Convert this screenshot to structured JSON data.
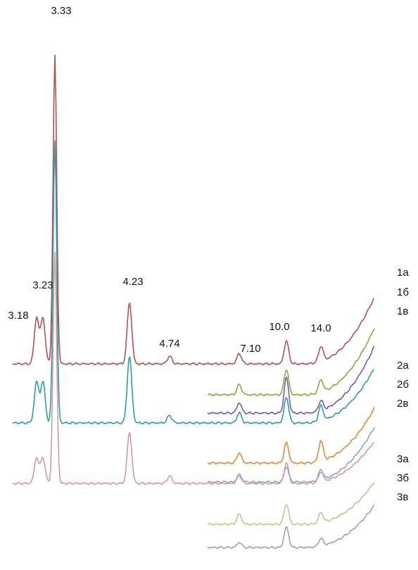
{
  "chart_data": {
    "type": "line",
    "title": "",
    "xlabel": "",
    "ylabel": "",
    "x_unit": "d-spacing",
    "grid": false,
    "legend_position": "right",
    "peak_labels": [
      "3.18",
      "3.23",
      "3.33",
      "4.23",
      "4.74",
      "7.10",
      "10.0",
      "14.0"
    ],
    "series": [
      {
        "name": "1а",
        "color": "#b5524f",
        "range": [
          3.1,
          14.5
        ],
        "peaks": [
          {
            "d": 3.18,
            "h": 9
          },
          {
            "d": 3.23,
            "h": 9
          },
          {
            "d": 3.33,
            "h": 60
          },
          {
            "d": 4.23,
            "h": 12
          },
          {
            "d": 4.74,
            "h": 1.5
          },
          {
            "d": 7.1,
            "h": 2
          },
          {
            "d": 10.0,
            "h": 4.5
          },
          {
            "d": 14.0,
            "h": 3
          }
        ]
      },
      {
        "name": "1б",
        "color": "#8aa93f",
        "range": [
          6.0,
          14.5
        ],
        "peaks": [
          {
            "d": 7.1,
            "h": 2
          },
          {
            "d": 10.0,
            "h": 5
          },
          {
            "d": 14.0,
            "h": 2.5
          }
        ]
      },
      {
        "name": "1в",
        "color": "#7b5aa3",
        "range": [
          6.0,
          14.5
        ],
        "peaks": [
          {
            "d": 7.1,
            "h": 2
          },
          {
            "d": 10.0,
            "h": 7
          },
          {
            "d": 14.0,
            "h": 2
          }
        ]
      },
      {
        "name": "2а",
        "color": "#2e9aa8",
        "range": [
          3.1,
          14.5
        ],
        "peaks": [
          {
            "d": 3.18,
            "h": 8
          },
          {
            "d": 3.23,
            "h": 8
          },
          {
            "d": 3.33,
            "h": 55
          },
          {
            "d": 4.23,
            "h": 13
          },
          {
            "d": 4.74,
            "h": 1.5
          },
          {
            "d": 7.1,
            "h": 2
          },
          {
            "d": 10.0,
            "h": 5
          },
          {
            "d": 14.0,
            "h": 3
          }
        ]
      },
      {
        "name": "2б",
        "color": "#e38a3a",
        "range": [
          6.0,
          14.5
        ],
        "peaks": [
          {
            "d": 7.1,
            "h": 2
          },
          {
            "d": 10.0,
            "h": 4
          },
          {
            "d": 14.0,
            "h": 4
          }
        ]
      },
      {
        "name": "2в",
        "color": "#8da4cc",
        "range": [
          6.0,
          14.5
        ],
        "peaks": [
          {
            "d": 7.1,
            "h": 1.5
          },
          {
            "d": 10.0,
            "h": 3
          },
          {
            "d": 14.0,
            "h": 2
          }
        ]
      },
      {
        "name": "3а",
        "color": "#d59a98",
        "range": [
          3.1,
          14.5
        ],
        "peaks": [
          {
            "d": 3.18,
            "h": 5
          },
          {
            "d": 3.23,
            "h": 5
          },
          {
            "d": 3.33,
            "h": 45
          },
          {
            "d": 4.23,
            "h": 10
          },
          {
            "d": 4.74,
            "h": 1.5
          },
          {
            "d": 7.1,
            "h": 1.5
          },
          {
            "d": 10.0,
            "h": 4
          },
          {
            "d": 14.0,
            "h": 2
          }
        ]
      },
      {
        "name": "3б",
        "color": "#b5cc8e",
        "range": [
          6.0,
          14.5
        ],
        "peaks": [
          {
            "d": 7.1,
            "h": 2
          },
          {
            "d": 10.0,
            "h": 4
          },
          {
            "d": 14.0,
            "h": 2
          }
        ]
      },
      {
        "name": "3в",
        "color": "#a69cc5",
        "range": [
          6.0,
          14.5
        ],
        "peaks": [
          {
            "d": 7.1,
            "h": 1
          },
          {
            "d": 10.0,
            "h": 4
          },
          {
            "d": 14.0,
            "h": 1.5
          }
        ]
      }
    ],
    "legend": [
      "1а",
      "1б",
      "1в",
      "2а",
      "2б",
      "2в",
      "3а",
      "3б",
      "3в"
    ]
  }
}
